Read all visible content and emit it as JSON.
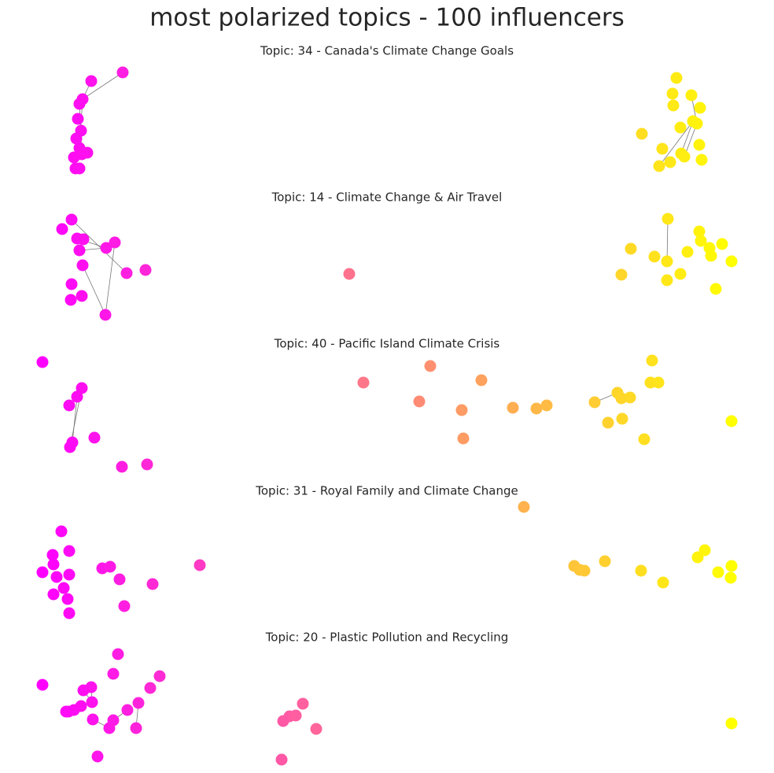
{
  "header": {
    "title": "most polarized topics - 100 influencers"
  },
  "panels": [
    {
      "title": "Topic: 34 - Canada's Climate Change Goals"
    },
    {
      "title": "Topic: 14 - Climate Change & Air Travel"
    },
    {
      "title": "Topic: 40 - Pacific Island Climate Crisis"
    },
    {
      "title": "Topic: 31 - Royal Family and Climate Change"
    },
    {
      "title": "Topic: 20 - Plastic Pollution and Recycling"
    }
  ]
}
